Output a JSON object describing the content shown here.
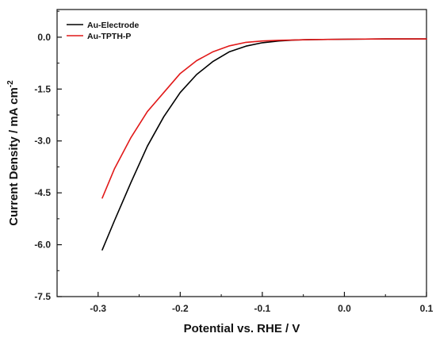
{
  "chart_data": {
    "type": "line",
    "xlabel": "Potential vs. RHE / V",
    "ylabel": "Current Density / mA cm",
    "ylabel_sup": "-2",
    "xlim": [
      -0.35,
      0.1
    ],
    "ylim": [
      -7.5,
      0.8
    ],
    "x_ticks": [
      -0.3,
      -0.2,
      -0.1,
      0.0,
      0.1
    ],
    "x_tick_labels": [
      "-0.3",
      "-0.2",
      "-0.1",
      "0.0",
      "0.1"
    ],
    "y_ticks": [
      0.0,
      -1.5,
      -3.0,
      -4.5,
      -6.0,
      -7.5
    ],
    "y_tick_labels": [
      "0.0",
      "-1.5",
      "-3.0",
      "-4.5",
      "-6.0",
      "-7.5"
    ],
    "legend_position": "top-left",
    "series": [
      {
        "name": "Au-Electrode",
        "color": "#000000",
        "x": [
          -0.295,
          -0.28,
          -0.26,
          -0.24,
          -0.22,
          -0.2,
          -0.18,
          -0.16,
          -0.14,
          -0.12,
          -0.1,
          -0.08,
          -0.06,
          -0.04,
          0.0,
          0.05,
          0.1
        ],
        "y": [
          -6.15,
          -5.3,
          -4.2,
          -3.15,
          -2.3,
          -1.6,
          -1.08,
          -0.7,
          -0.42,
          -0.26,
          -0.16,
          -0.11,
          -0.08,
          -0.07,
          -0.06,
          -0.05,
          -0.05
        ]
      },
      {
        "name": "Au-TPTH-P",
        "color": "#e11919",
        "x": [
          -0.295,
          -0.28,
          -0.26,
          -0.24,
          -0.22,
          -0.2,
          -0.18,
          -0.16,
          -0.14,
          -0.12,
          -0.1,
          -0.08,
          -0.06,
          -0.04,
          0.0,
          0.05,
          0.1
        ],
        "y": [
          -4.65,
          -3.8,
          -2.9,
          -2.15,
          -1.6,
          -1.05,
          -0.68,
          -0.42,
          -0.25,
          -0.15,
          -0.11,
          -0.09,
          -0.08,
          -0.07,
          -0.06,
          -0.05,
          -0.05
        ]
      }
    ]
  }
}
